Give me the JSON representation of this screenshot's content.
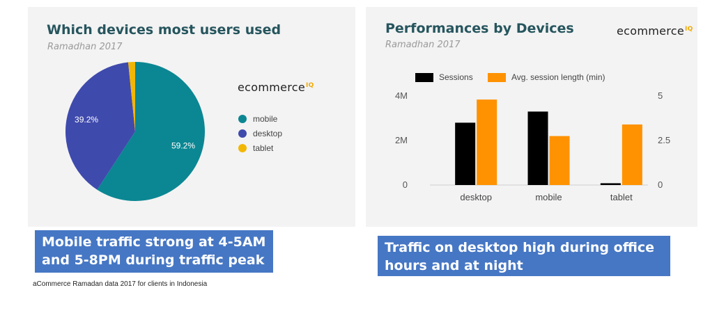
{
  "brand": {
    "name": "ecommerce",
    "sup": "IQ"
  },
  "colors": {
    "mobile": "#0b8793",
    "desktop": "#3f4aad",
    "tablet": "#f2b705",
    "sessions": "#000000",
    "avg": "#ff9200",
    "callout": "#4677c4"
  },
  "left": {
    "title": "Which devices most users used",
    "subtitle": "Ramadhan 2017",
    "callout_line1": "Mobile traffic strong at 4-5AM",
    "callout_line2": "and 5-8PM during traffic peak",
    "footnote": "aCommerce Ramadan data 2017 for clients in Indonesia"
  },
  "right": {
    "title": "Performances by Devices",
    "subtitle": "Ramadhan 2017",
    "callout_line1": "Traffic on desktop high during office",
    "callout_line2": "hours and at night"
  },
  "chart_data": [
    {
      "type": "pie",
      "title": "Which devices most users used",
      "subtitle": "Ramadhan 2017",
      "categories": [
        "mobile",
        "desktop",
        "tablet"
      ],
      "values": [
        59.2,
        39.2,
        1.6
      ],
      "labels": [
        "59.2%",
        "39.2%",
        ""
      ],
      "legend": "right"
    },
    {
      "type": "bar",
      "title": "Performances by Devices",
      "subtitle": "Ramadhan 2017",
      "categories": [
        "desktop",
        "mobile",
        "tablet"
      ],
      "series": [
        {
          "name": "Sessions",
          "axis": "left",
          "values": [
            2800000,
            3300000,
            80000
          ]
        },
        {
          "name": "Avg. session length (min)",
          "axis": "right",
          "values": [
            4.8,
            2.75,
            3.4
          ]
        }
      ],
      "y_left": {
        "ylim": [
          0,
          4000000
        ],
        "ticks": [
          "0",
          "2M",
          "4M"
        ]
      },
      "y_right": {
        "ylim": [
          0,
          5
        ],
        "ticks": [
          "0",
          "2.5",
          "5"
        ]
      },
      "legend": "top"
    }
  ]
}
